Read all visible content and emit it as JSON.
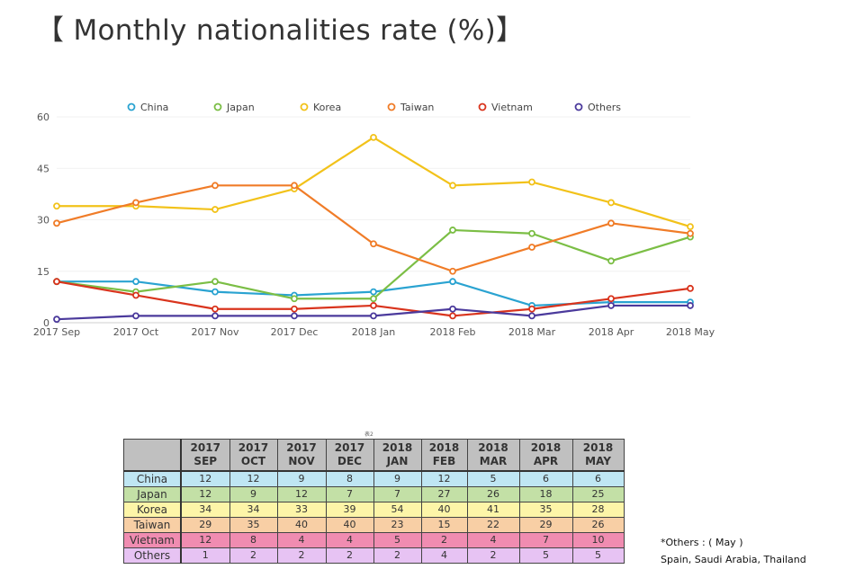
{
  "title": "【 Monthly nationalities rate (%)】",
  "chart_data": {
    "type": "line",
    "categories": [
      "2017 Sep",
      "2017 Oct",
      "2017 Nov",
      "2017 Dec",
      "2018 Jan",
      "2018 Feb",
      "2018 Mar",
      "2018 Apr",
      "2018 May"
    ],
    "yticks": [
      0,
      15,
      30,
      45,
      60
    ],
    "ylim": [
      0,
      60
    ],
    "legend_position": "top",
    "grid": false,
    "series": [
      {
        "name": "China",
        "color": "#2aa3d1",
        "values": [
          12,
          12,
          9,
          8,
          9,
          12,
          5,
          6,
          6
        ]
      },
      {
        "name": "Japan",
        "color": "#7bbe45",
        "values": [
          12,
          9,
          12,
          7,
          7,
          27,
          26,
          18,
          25
        ]
      },
      {
        "name": "Korea",
        "color": "#f2c21a",
        "values": [
          34,
          34,
          33,
          39,
          54,
          40,
          41,
          35,
          28
        ]
      },
      {
        "name": "Taiwan",
        "color": "#f07c28",
        "values": [
          29,
          35,
          40,
          40,
          23,
          15,
          22,
          29,
          26
        ]
      },
      {
        "name": "Vietnam",
        "color": "#d9341d",
        "values": [
          12,
          8,
          4,
          4,
          5,
          2,
          4,
          7,
          10
        ]
      },
      {
        "name": "Others",
        "color": "#4b3a9c",
        "values": [
          1,
          2,
          2,
          2,
          2,
          4,
          2,
          5,
          5
        ]
      }
    ]
  },
  "table": {
    "caption": "表2",
    "columns": [
      {
        "year": "2017",
        "month": "SEP"
      },
      {
        "year": "2017",
        "month": "OCT"
      },
      {
        "year": "2017",
        "month": "NOV"
      },
      {
        "year": "2017",
        "month": "DEC"
      },
      {
        "year": "2018",
        "month": "JAN"
      },
      {
        "year": "2018",
        "month": "FEB"
      },
      {
        "year": "2018",
        "month": "MAR"
      },
      {
        "year": "2018",
        "month": "APR"
      },
      {
        "year": "2018",
        "month": "MAY"
      }
    ],
    "rows": [
      {
        "label": "China",
        "color": "#bfe6f3",
        "values": [
          "12",
          "12",
          "9",
          "8",
          "9",
          "12",
          "5",
          "6",
          "6"
        ]
      },
      {
        "label": "Japan",
        "color": "#c3e0a6",
        "values": [
          "12",
          "9",
          "12",
          "7",
          "7",
          "27",
          "26",
          "18",
          "25"
        ]
      },
      {
        "label": "Korea",
        "color": "#fdf5a8",
        "values": [
          "34",
          "34",
          "33",
          "39",
          "54",
          "40",
          "41",
          "35",
          "28"
        ]
      },
      {
        "label": "Taiwan",
        "color": "#f8cfa5",
        "values": [
          "29",
          "35",
          "40",
          "40",
          "23",
          "15",
          "22",
          "29",
          "26"
        ]
      },
      {
        "label": "Vietnam",
        "color": "#f08cb1",
        "values": [
          "12",
          "8",
          "4",
          "4",
          "5",
          "2",
          "4",
          "7",
          "10"
        ]
      },
      {
        "label": "Others",
        "color": "#e7c3f3",
        "values": [
          "1",
          "2",
          "2",
          "2",
          "2",
          "4",
          "2",
          "5",
          "5"
        ]
      }
    ]
  },
  "note": {
    "line1": "*Others : ( May )",
    "line2": "Spain, Saudi Arabia, Thailand"
  }
}
